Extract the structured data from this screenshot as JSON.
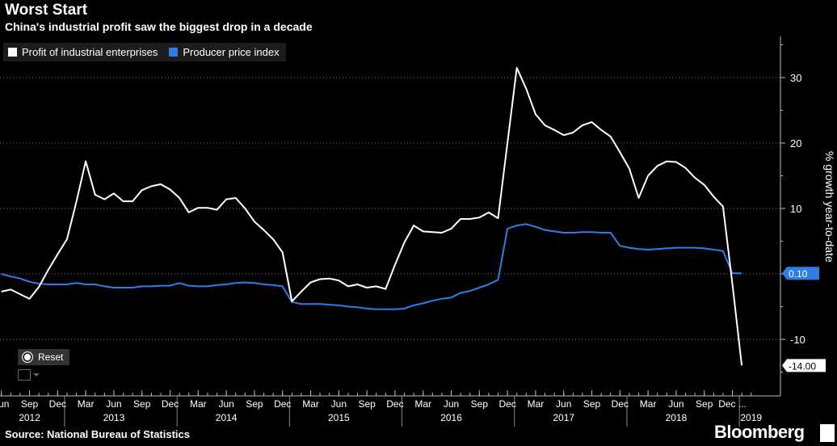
{
  "header": {
    "title": "Worst Start",
    "subtitle": "China's industrial profit saw the biggest drop in a decade"
  },
  "controls": {
    "reset_label": "Reset"
  },
  "footer": {
    "source": "Source: National Bureau of Statistics",
    "brand": "Bloomberg"
  },
  "chart_data": {
    "type": "line",
    "title": "Worst Start",
    "subtitle": "China's industrial profit saw the biggest drop in a decade",
    "ylabel": "% growth year-to-date",
    "ylim": [
      -17,
      36
    ],
    "yticks": [
      -10,
      0,
      10,
      20,
      30
    ],
    "ytick_labels": [
      "-10",
      "0",
      "10",
      "20",
      "30"
    ],
    "grid": "horizontal dotted",
    "legend_position": "top-left",
    "x_range_months": [
      0,
      80
    ],
    "x_tick_labels": [
      {
        "m": 0,
        "label": "Jun"
      },
      {
        "m": 3,
        "label": "Sep"
      },
      {
        "m": 6,
        "label": "Dec"
      },
      {
        "m": 9,
        "label": "Mar"
      },
      {
        "m": 12,
        "label": "Jun"
      },
      {
        "m": 15,
        "label": "Sep"
      },
      {
        "m": 18,
        "label": "Dec"
      },
      {
        "m": 21,
        "label": "Mar"
      },
      {
        "m": 24,
        "label": "Jun"
      },
      {
        "m": 27,
        "label": "Sep"
      },
      {
        "m": 30,
        "label": "Dec"
      },
      {
        "m": 33,
        "label": "Mar"
      },
      {
        "m": 36,
        "label": "Jun"
      },
      {
        "m": 39,
        "label": "Sep"
      },
      {
        "m": 42,
        "label": "Dec"
      },
      {
        "m": 45,
        "label": "Mar"
      },
      {
        "m": 48,
        "label": "Jun"
      },
      {
        "m": 51,
        "label": "Sep"
      },
      {
        "m": 54,
        "label": "Dec"
      },
      {
        "m": 57,
        "label": "Mar"
      },
      {
        "m": 60,
        "label": "Jun"
      },
      {
        "m": 63,
        "label": "Sep"
      },
      {
        "m": 66,
        "label": "Dec"
      },
      {
        "m": 69,
        "label": "Mar"
      },
      {
        "m": 72,
        "label": "Jun"
      },
      {
        "m": 75,
        "label": "Sep"
      },
      {
        "m": 78,
        "label": "Dec ..."
      }
    ],
    "year_labels": [
      {
        "m": 3,
        "label": "2012"
      },
      {
        "m": 12,
        "label": "2013"
      },
      {
        "m": 24,
        "label": "2014"
      },
      {
        "m": 36,
        "label": "2015"
      },
      {
        "m": 48,
        "label": "2016"
      },
      {
        "m": 60,
        "label": "2017"
      },
      {
        "m": 72,
        "label": "2018"
      },
      {
        "m": 80,
        "label": "2019"
      }
    ],
    "year_dividers": [
      7,
      19,
      31,
      43,
      55,
      67,
      79
    ],
    "series": [
      {
        "name": "Profit of industrial enterprises",
        "color": "#ffffff",
        "end_label": "-14.00",
        "points": [
          [
            0,
            -2.7
          ],
          [
            1,
            -2.4
          ],
          [
            2,
            -3.1
          ],
          [
            3,
            -3.8
          ],
          [
            4,
            -2.0
          ],
          [
            5,
            0.6
          ],
          [
            6,
            3.0
          ],
          [
            7,
            5.3
          ],
          [
            8,
            11.0
          ],
          [
            9,
            17.2
          ],
          [
            10,
            12.1
          ],
          [
            11,
            11.4
          ],
          [
            12,
            12.3
          ],
          [
            13,
            11.1
          ],
          [
            14,
            11.1
          ],
          [
            15,
            12.8
          ],
          [
            16,
            13.4
          ],
          [
            17,
            13.7
          ],
          [
            18,
            12.9
          ],
          [
            19,
            11.6
          ],
          [
            20,
            9.4
          ],
          [
            21,
            10.1
          ],
          [
            22,
            10.1
          ],
          [
            23,
            9.8
          ],
          [
            24,
            11.4
          ],
          [
            25,
            11.6
          ],
          [
            26,
            10.0
          ],
          [
            27,
            8.0
          ],
          [
            28,
            6.7
          ],
          [
            29,
            5.3
          ],
          [
            30,
            3.3
          ],
          [
            31,
            -4.2
          ],
          [
            32,
            -2.7
          ],
          [
            33,
            -1.3
          ],
          [
            34,
            -0.8
          ],
          [
            35,
            -0.7
          ],
          [
            36,
            -1.0
          ],
          [
            37,
            -1.9
          ],
          [
            38,
            -1.6
          ],
          [
            39,
            -2.1
          ],
          [
            40,
            -1.9
          ],
          [
            41,
            -2.3
          ],
          [
            42,
            1.4
          ],
          [
            43,
            4.8
          ],
          [
            44,
            7.4
          ],
          [
            45,
            6.5
          ],
          [
            46,
            6.4
          ],
          [
            47,
            6.3
          ],
          [
            48,
            6.9
          ],
          [
            49,
            8.4
          ],
          [
            50,
            8.4
          ],
          [
            51,
            8.6
          ],
          [
            52,
            9.4
          ],
          [
            53,
            8.5
          ],
          [
            54,
            20.0
          ],
          [
            55,
            31.5
          ],
          [
            56,
            28.3
          ],
          [
            57,
            24.4
          ],
          [
            58,
            22.7
          ],
          [
            59,
            22.0
          ],
          [
            60,
            21.2
          ],
          [
            61,
            21.6
          ],
          [
            62,
            22.7
          ],
          [
            63,
            23.2
          ],
          [
            64,
            22.0
          ],
          [
            65,
            21.0
          ],
          [
            66,
            18.6
          ],
          [
            67,
            16.1
          ],
          [
            68,
            11.6
          ],
          [
            69,
            15.0
          ],
          [
            70,
            16.5
          ],
          [
            71,
            17.2
          ],
          [
            72,
            17.1
          ],
          [
            73,
            16.2
          ],
          [
            74,
            14.7
          ],
          [
            75,
            13.6
          ],
          [
            76,
            11.8
          ],
          [
            77,
            10.3
          ],
          [
            78,
            -1.5
          ],
          [
            79,
            -14.0
          ]
        ]
      },
      {
        "name": "Producer price index",
        "color": "#2d7fe6",
        "end_label": "0.10",
        "points": [
          [
            0,
            0.0
          ],
          [
            1,
            -0.4
          ],
          [
            2,
            -0.7
          ],
          [
            3,
            -1.2
          ],
          [
            4,
            -1.5
          ],
          [
            5,
            -1.6
          ],
          [
            6,
            -1.6
          ],
          [
            7,
            -1.6
          ],
          [
            8,
            -1.4
          ],
          [
            9,
            -1.6
          ],
          [
            10,
            -1.6
          ],
          [
            11,
            -1.9
          ],
          [
            12,
            -2.1
          ],
          [
            13,
            -2.1
          ],
          [
            14,
            -2.1
          ],
          [
            15,
            -1.9
          ],
          [
            16,
            -1.9
          ],
          [
            17,
            -1.8
          ],
          [
            18,
            -1.8
          ],
          [
            19,
            -1.4
          ],
          [
            20,
            -1.8
          ],
          [
            21,
            -1.9
          ],
          [
            22,
            -1.9
          ],
          [
            23,
            -1.7
          ],
          [
            24,
            -1.6
          ],
          [
            25,
            -1.4
          ],
          [
            26,
            -1.3
          ],
          [
            27,
            -1.4
          ],
          [
            28,
            -1.6
          ],
          [
            29,
            -1.7
          ],
          [
            30,
            -1.9
          ],
          [
            31,
            -4.3
          ],
          [
            32,
            -4.6
          ],
          [
            33,
            -4.6
          ],
          [
            34,
            -4.6
          ],
          [
            35,
            -4.7
          ],
          [
            36,
            -4.8
          ],
          [
            37,
            -5.0
          ],
          [
            38,
            -5.1
          ],
          [
            39,
            -5.3
          ],
          [
            40,
            -5.4
          ],
          [
            41,
            -5.4
          ],
          [
            42,
            -5.4
          ],
          [
            43,
            -5.3
          ],
          [
            44,
            -4.8
          ],
          [
            45,
            -4.5
          ],
          [
            46,
            -4.1
          ],
          [
            47,
            -3.8
          ],
          [
            48,
            -3.6
          ],
          [
            49,
            -2.9
          ],
          [
            50,
            -2.6
          ],
          [
            51,
            -2.1
          ],
          [
            52,
            -1.6
          ],
          [
            53,
            -0.9
          ],
          [
            54,
            6.9
          ],
          [
            55,
            7.4
          ],
          [
            56,
            7.6
          ],
          [
            57,
            7.2
          ],
          [
            58,
            6.7
          ],
          [
            59,
            6.5
          ],
          [
            60,
            6.3
          ],
          [
            61,
            6.3
          ],
          [
            62,
            6.4
          ],
          [
            63,
            6.4
          ],
          [
            64,
            6.3
          ],
          [
            65,
            6.3
          ],
          [
            66,
            4.3
          ],
          [
            67,
            4.0
          ],
          [
            68,
            3.8
          ],
          [
            69,
            3.7
          ],
          [
            70,
            3.8
          ],
          [
            71,
            3.9
          ],
          [
            72,
            4.0
          ],
          [
            73,
            4.0
          ],
          [
            74,
            4.0
          ],
          [
            75,
            3.9
          ],
          [
            76,
            3.7
          ],
          [
            77,
            3.5
          ],
          [
            78,
            0.1
          ],
          [
            79,
            0.1
          ]
        ]
      }
    ]
  }
}
